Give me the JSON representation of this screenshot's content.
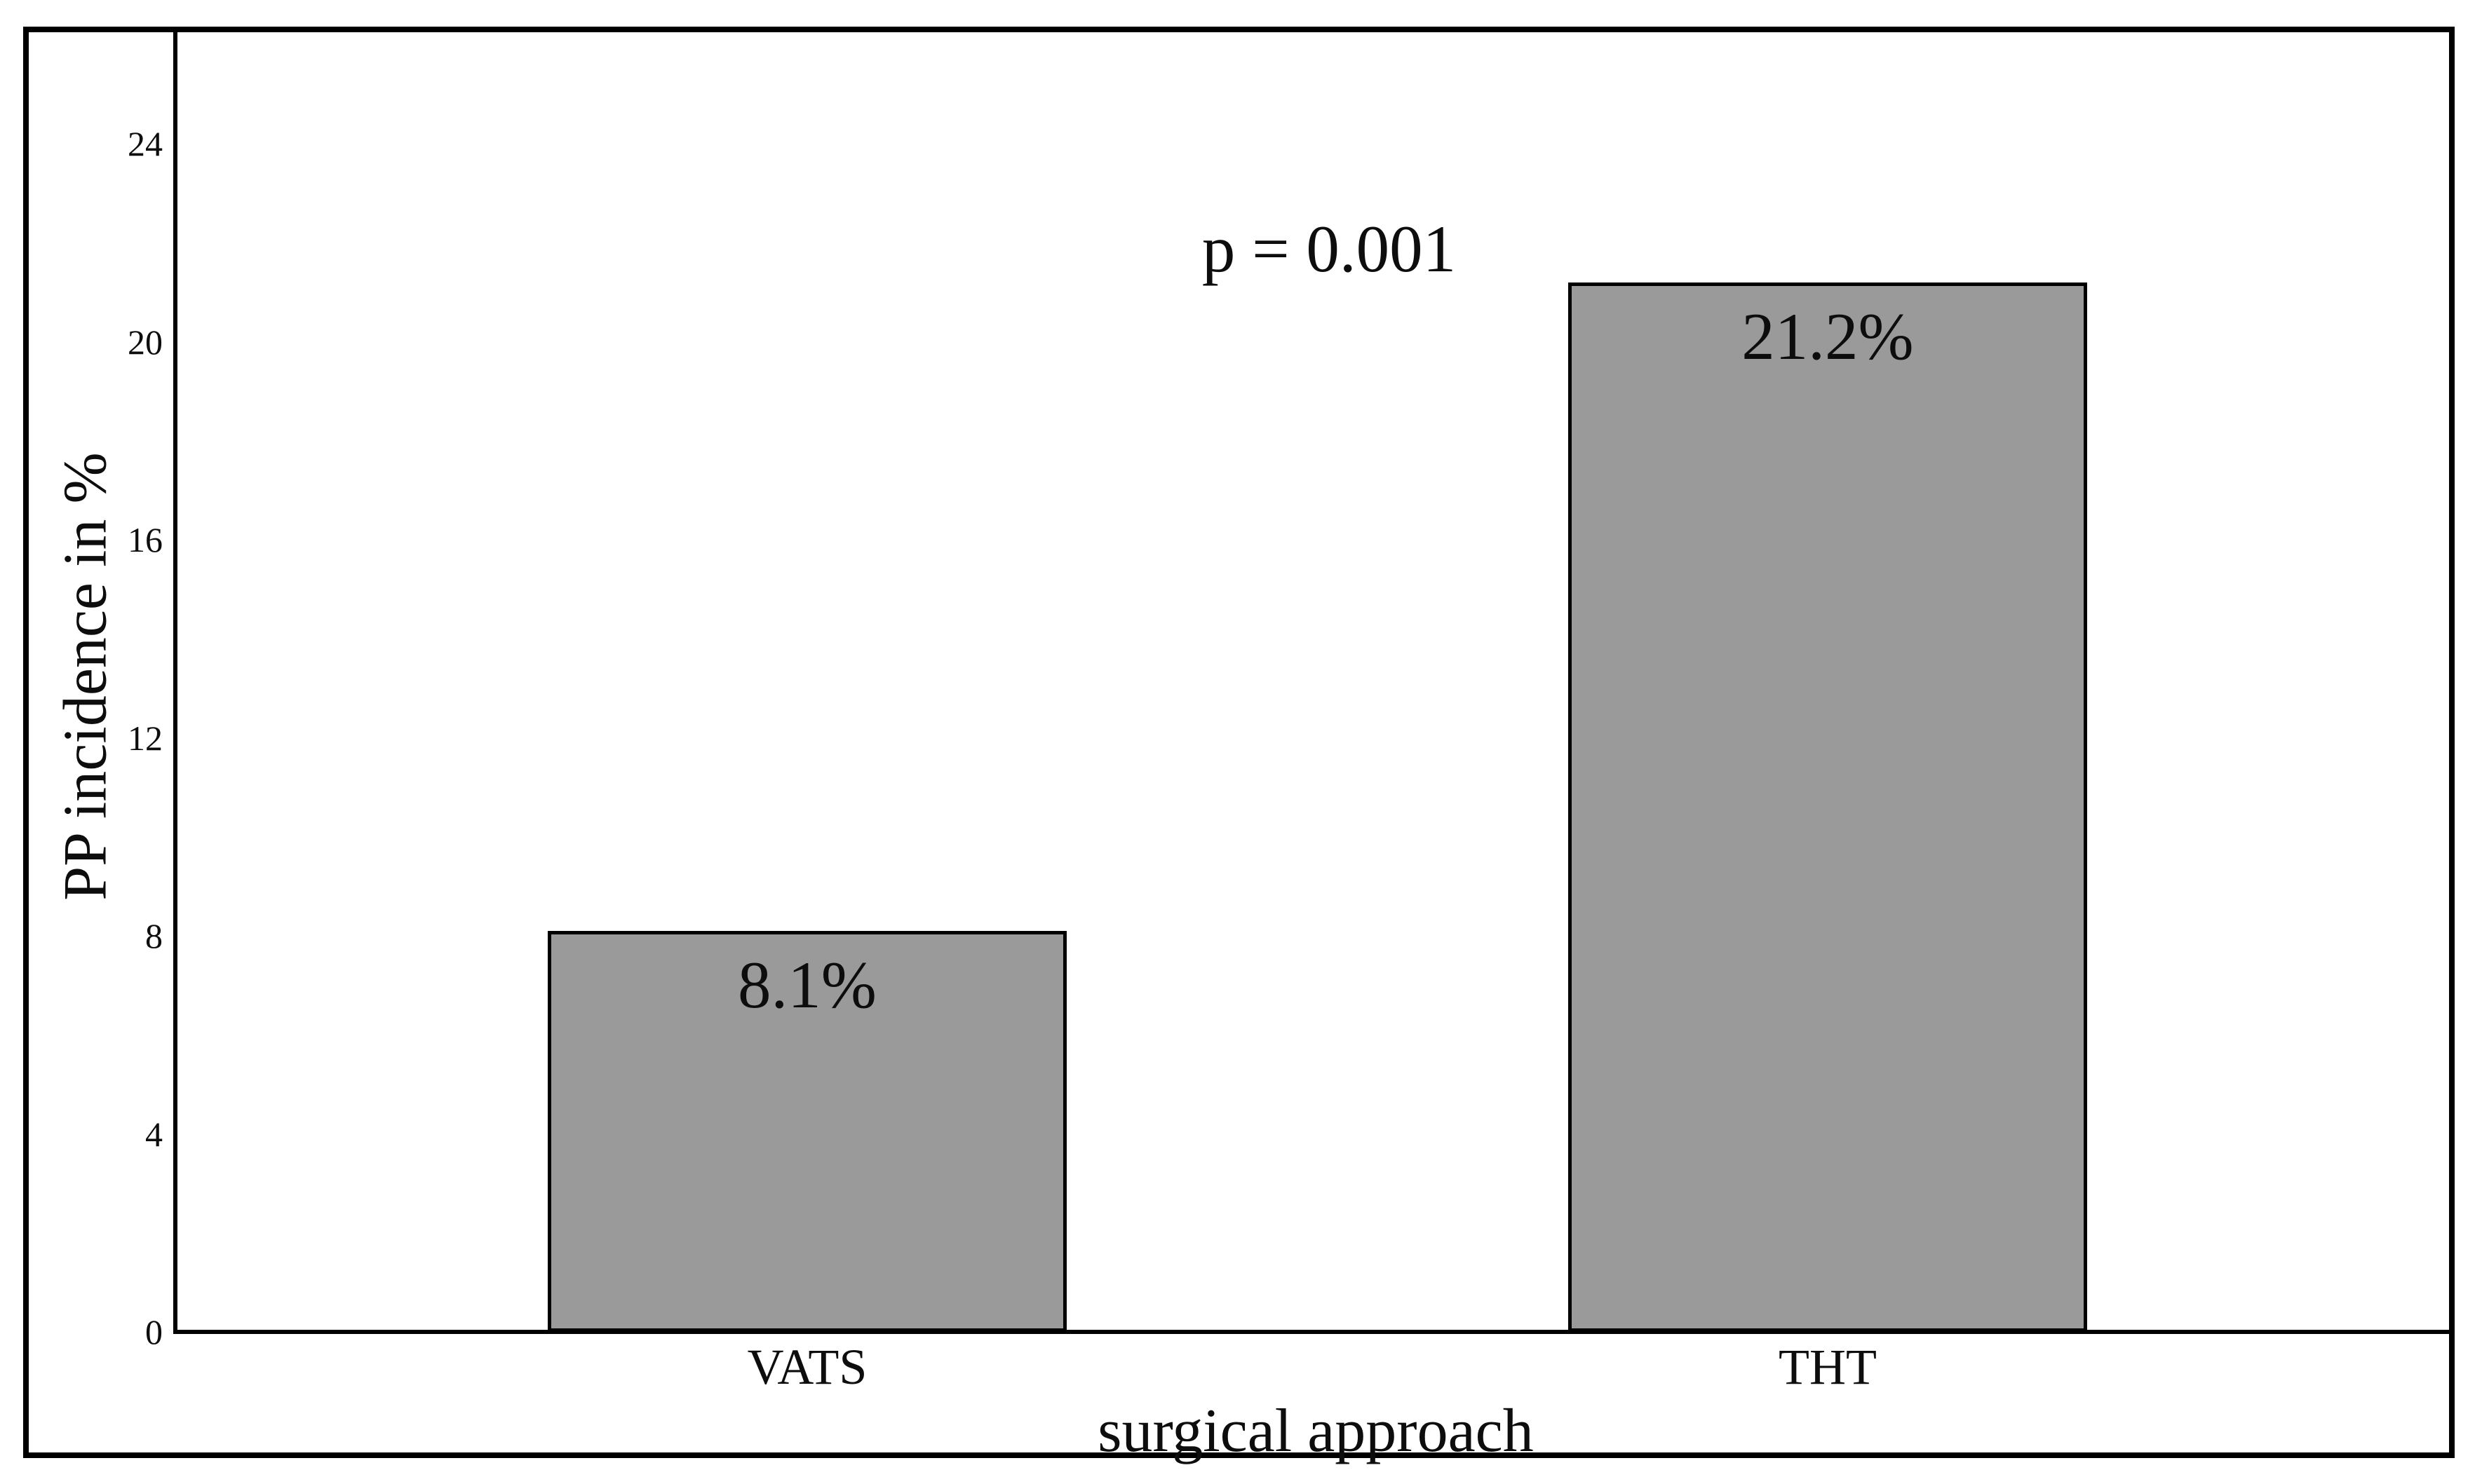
{
  "chart_data": {
    "type": "bar",
    "title": "",
    "categories": [
      "VATS",
      "THT"
    ],
    "values": [
      8.1,
      21.2
    ],
    "bar_labels": [
      "8.1%",
      "21.2%"
    ],
    "xlabel": "surgical approach",
    "ylabel": "PP incidence in %",
    "ylim": [
      0,
      24
    ],
    "yticks": [
      0,
      4,
      8,
      12,
      16,
      20,
      24
    ],
    "annotation": "p = 0.001",
    "bar_color": "#9a9a9a",
    "bar_border_color": "#000000",
    "axis_color": "#000000",
    "frame_color": "#000000",
    "text_color": "#0d0d0d",
    "background": "#ffffff",
    "grid": false,
    "legend_position": "none"
  }
}
